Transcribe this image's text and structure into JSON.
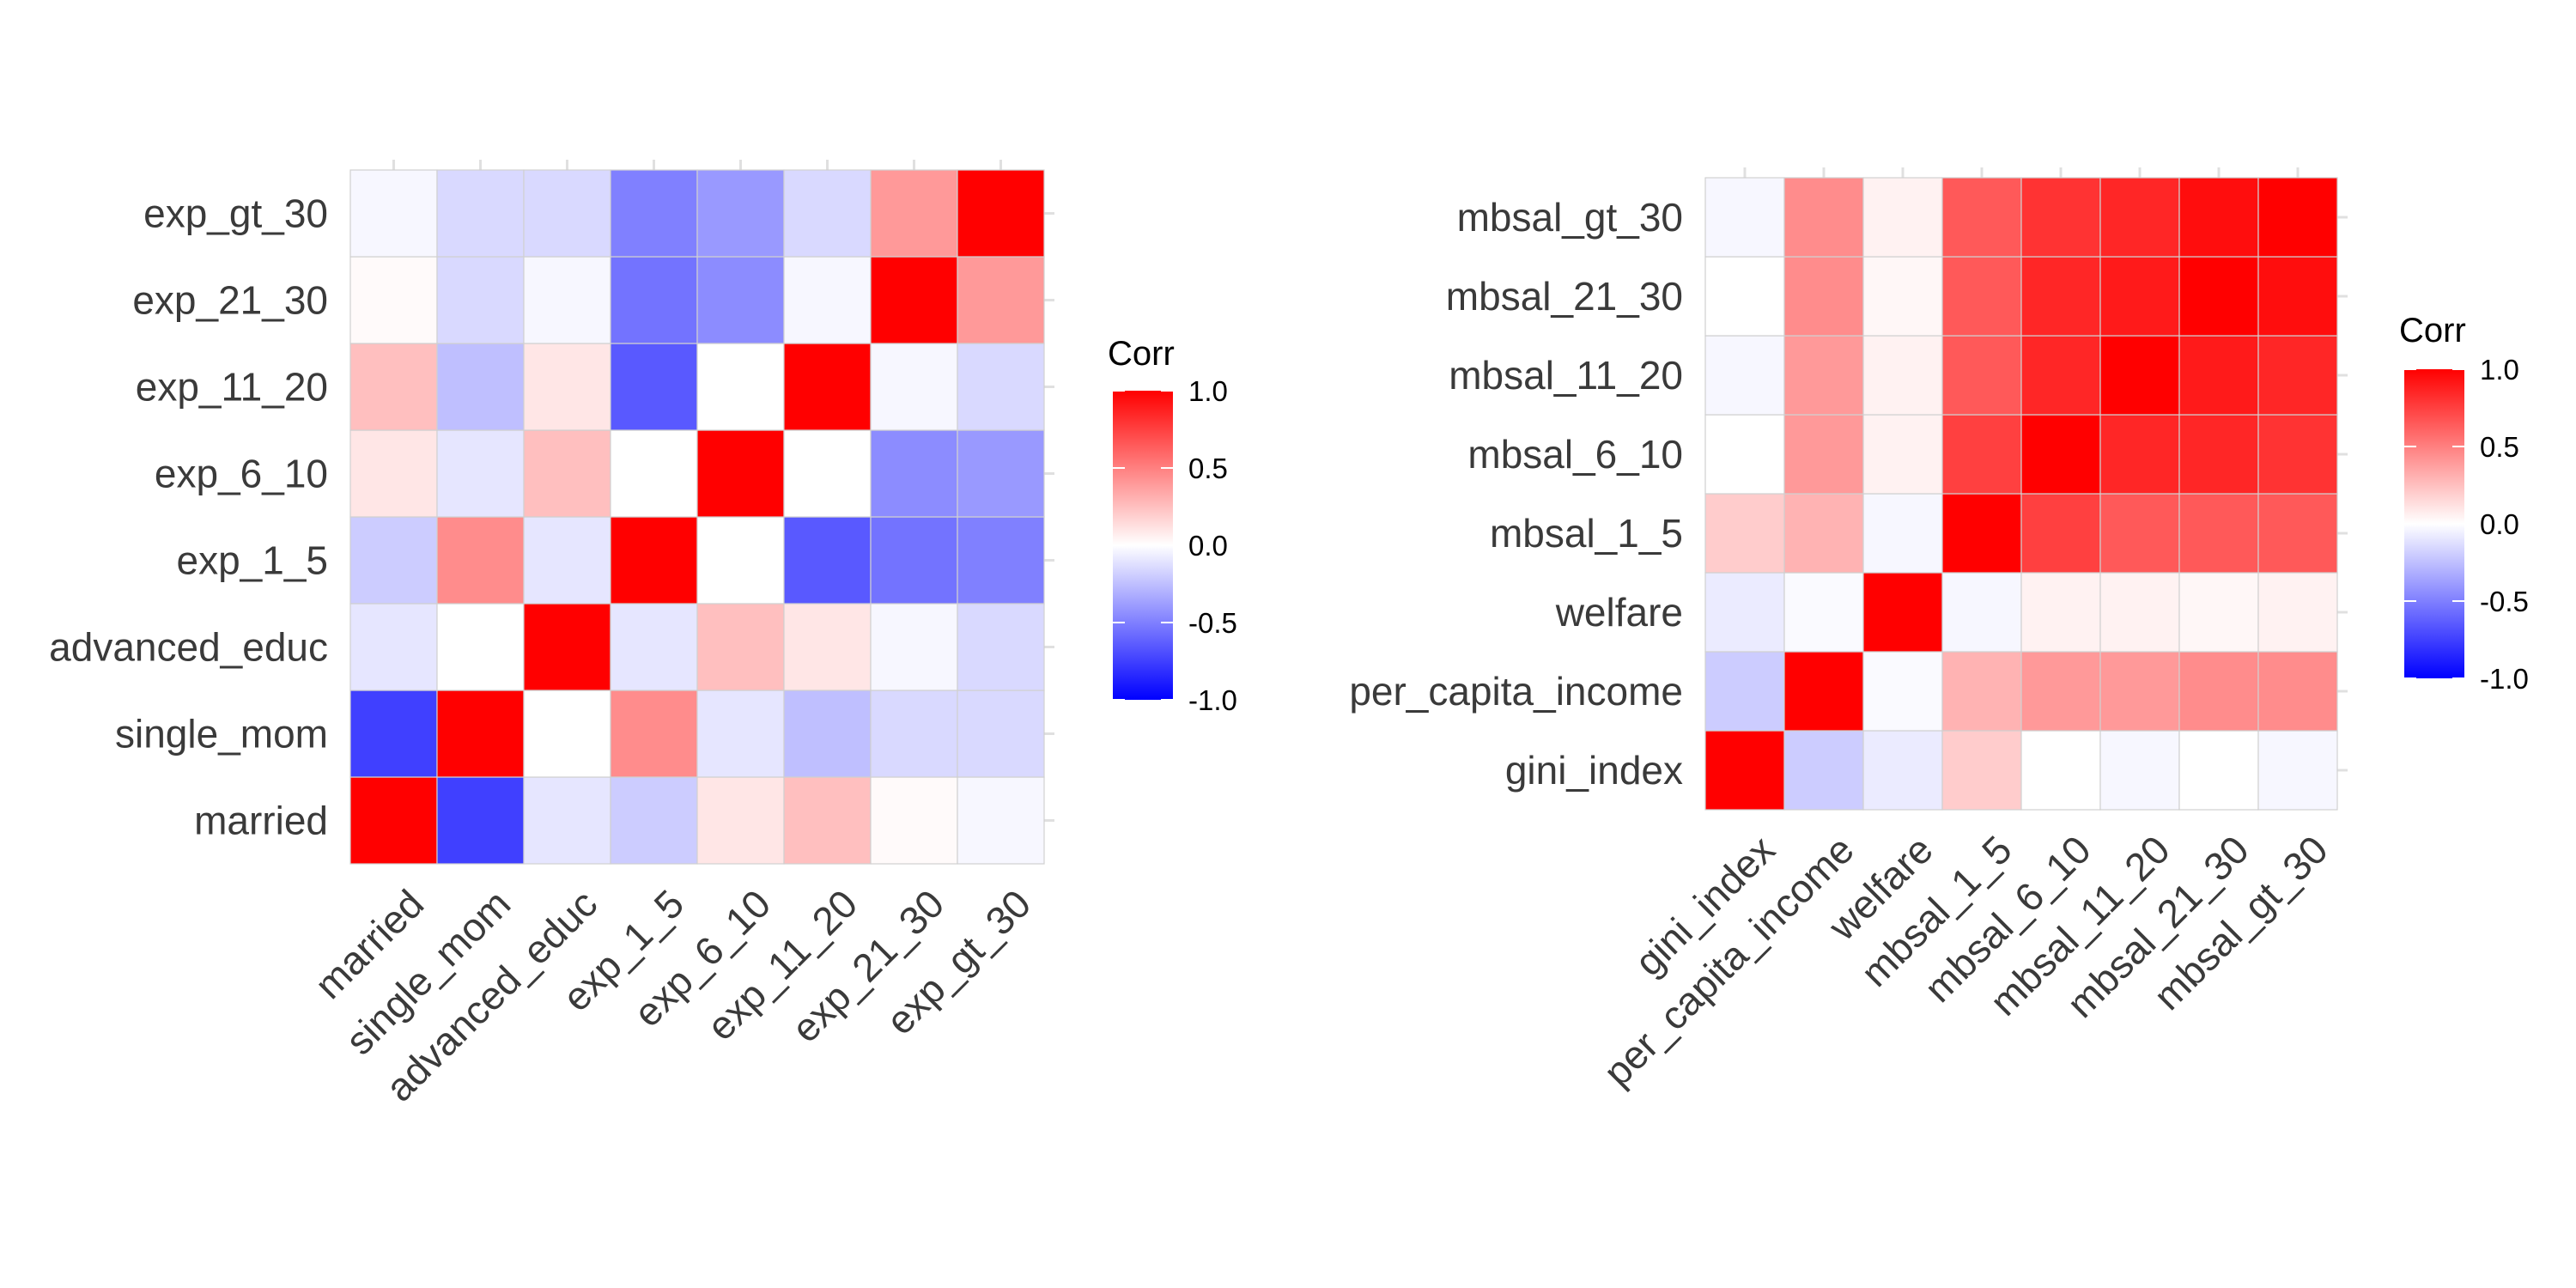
{
  "chart_data": [
    {
      "type": "heatmap",
      "title": "",
      "xlabel": "",
      "ylabel": "",
      "variables": [
        "married",
        "single_mom",
        "advanced_educ",
        "exp_1_5",
        "exp_6_10",
        "exp_11_20",
        "exp_21_30",
        "exp_gt_30"
      ],
      "matrix": [
        [
          1.0,
          -0.75,
          -0.1,
          -0.2,
          0.1,
          0.25,
          0.02,
          -0.03
        ],
        [
          -0.75,
          1.0,
          0.0,
          0.45,
          -0.1,
          -0.25,
          -0.15,
          -0.15
        ],
        [
          -0.1,
          0.0,
          1.0,
          -0.1,
          0.25,
          0.1,
          -0.03,
          -0.15
        ],
        [
          -0.2,
          0.45,
          -0.1,
          1.0,
          0.0,
          -0.65,
          -0.55,
          -0.5
        ],
        [
          0.1,
          -0.1,
          0.25,
          0.0,
          1.0,
          0.0,
          -0.45,
          -0.4
        ],
        [
          0.25,
          -0.25,
          0.1,
          -0.65,
          0.0,
          1.0,
          -0.03,
          -0.15
        ],
        [
          0.02,
          -0.15,
          -0.03,
          -0.55,
          -0.45,
          -0.03,
          1.0,
          0.4
        ],
        [
          -0.03,
          -0.15,
          -0.15,
          -0.5,
          -0.4,
          -0.15,
          0.4,
          1.0
        ]
      ],
      "legend": {
        "title": "Corr",
        "ticks": [
          "1.0",
          "0.5",
          "0.0",
          "-0.5",
          "-1.0"
        ],
        "range": [
          -1,
          1
        ]
      },
      "colors": {
        "low": "#0000FF",
        "mid": "#FFFFFF",
        "high": "#FF0000"
      },
      "grid": true,
      "legend_position": "right"
    },
    {
      "type": "heatmap",
      "title": "",
      "xlabel": "",
      "ylabel": "",
      "variables": [
        "gini_index",
        "per_capita_income",
        "welfare",
        "mbsal_1_5",
        "mbsal_6_10",
        "mbsal_11_20",
        "mbsal_21_30",
        "mbsal_gt_30"
      ],
      "matrix": [
        [
          1.0,
          -0.2,
          -0.08,
          0.2,
          0.0,
          -0.03,
          0.0,
          -0.03
        ],
        [
          -0.2,
          1.0,
          -0.02,
          0.3,
          0.4,
          0.4,
          0.45,
          0.45
        ],
        [
          -0.08,
          -0.02,
          1.0,
          -0.03,
          0.05,
          0.05,
          0.03,
          0.05
        ],
        [
          0.2,
          0.3,
          -0.03,
          1.0,
          0.75,
          0.65,
          0.65,
          0.65
        ],
        [
          0.0,
          0.4,
          0.05,
          0.75,
          1.0,
          0.85,
          0.85,
          0.8
        ],
        [
          -0.03,
          0.4,
          0.05,
          0.65,
          0.85,
          1.0,
          0.9,
          0.85
        ],
        [
          0.0,
          0.45,
          0.03,
          0.65,
          0.85,
          0.9,
          1.0,
          0.95
        ],
        [
          -0.03,
          0.45,
          0.05,
          0.65,
          0.8,
          0.85,
          0.95,
          1.0
        ]
      ],
      "legend": {
        "title": "Corr",
        "ticks": [
          "1.0",
          "0.5",
          "0.0",
          "-0.5",
          "-1.0"
        ],
        "range": [
          -1,
          1
        ]
      },
      "colors": {
        "low": "#0000FF",
        "mid": "#FFFFFF",
        "high": "#FF0000"
      },
      "grid": true,
      "legend_position": "right"
    }
  ]
}
